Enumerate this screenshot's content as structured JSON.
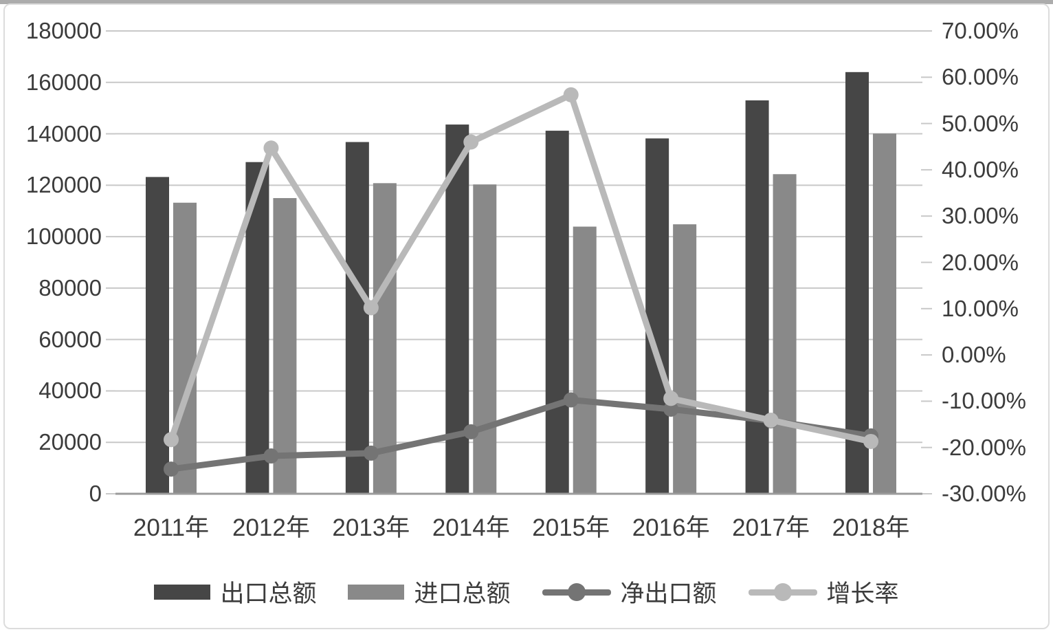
{
  "chart_data": {
    "type": "combo-bar-line",
    "title": "",
    "categories": [
      "2011年",
      "2012年",
      "2013年",
      "2014年",
      "2015年",
      "2016年",
      "2017年",
      "2018年"
    ],
    "series": [
      {
        "id": "exports",
        "name": "出口总额",
        "type": "bar",
        "axis": "left",
        "color": "#464646",
        "values": [
          123200,
          129000,
          136800,
          143600,
          141200,
          138200,
          153000,
          164000
        ]
      },
      {
        "id": "imports",
        "name": "进口总额",
        "type": "bar",
        "axis": "left",
        "color": "#898989",
        "values": [
          113200,
          115000,
          120800,
          120300,
          103900,
          104800,
          124300,
          140100
        ]
      },
      {
        "id": "net-exports",
        "name": "净出口额",
        "type": "line",
        "axis": "left",
        "color": "#747474",
        "values": [
          9600,
          14700,
          15800,
          24100,
          36500,
          32900,
          28400,
          22500
        ]
      },
      {
        "id": "growth-rate",
        "name": "增长率",
        "type": "line",
        "axis": "right",
        "color": "#b9b9b9",
        "values": [
          -18.3,
          44.7,
          10.2,
          46.0,
          56.2,
          -9.4,
          -14.1,
          -18.7
        ]
      }
    ],
    "left_axis": {
      "min": 0,
      "max": 180000,
      "step": 20000,
      "tick_labels": [
        "180000",
        "160000",
        "140000",
        "120000",
        "100000",
        "80000",
        "60000",
        "40000",
        "20000",
        "0"
      ]
    },
    "right_axis": {
      "min": -30,
      "max": 70,
      "step": 10,
      "format": "percent",
      "tick_labels": [
        "70.00%",
        "60.00%",
        "50.00%",
        "40.00%",
        "30.00%",
        "20.00%",
        "10.00%",
        "0.00%",
        "-10.00%",
        "-20.00%",
        "-30.00%"
      ]
    },
    "grid": true,
    "legend_position": "bottom",
    "colors": {
      "gridline": "#c8c8c8",
      "axis_line": "#9b9b9b",
      "text": "#3c3c3c",
      "frame": "#dcdcdc"
    }
  }
}
